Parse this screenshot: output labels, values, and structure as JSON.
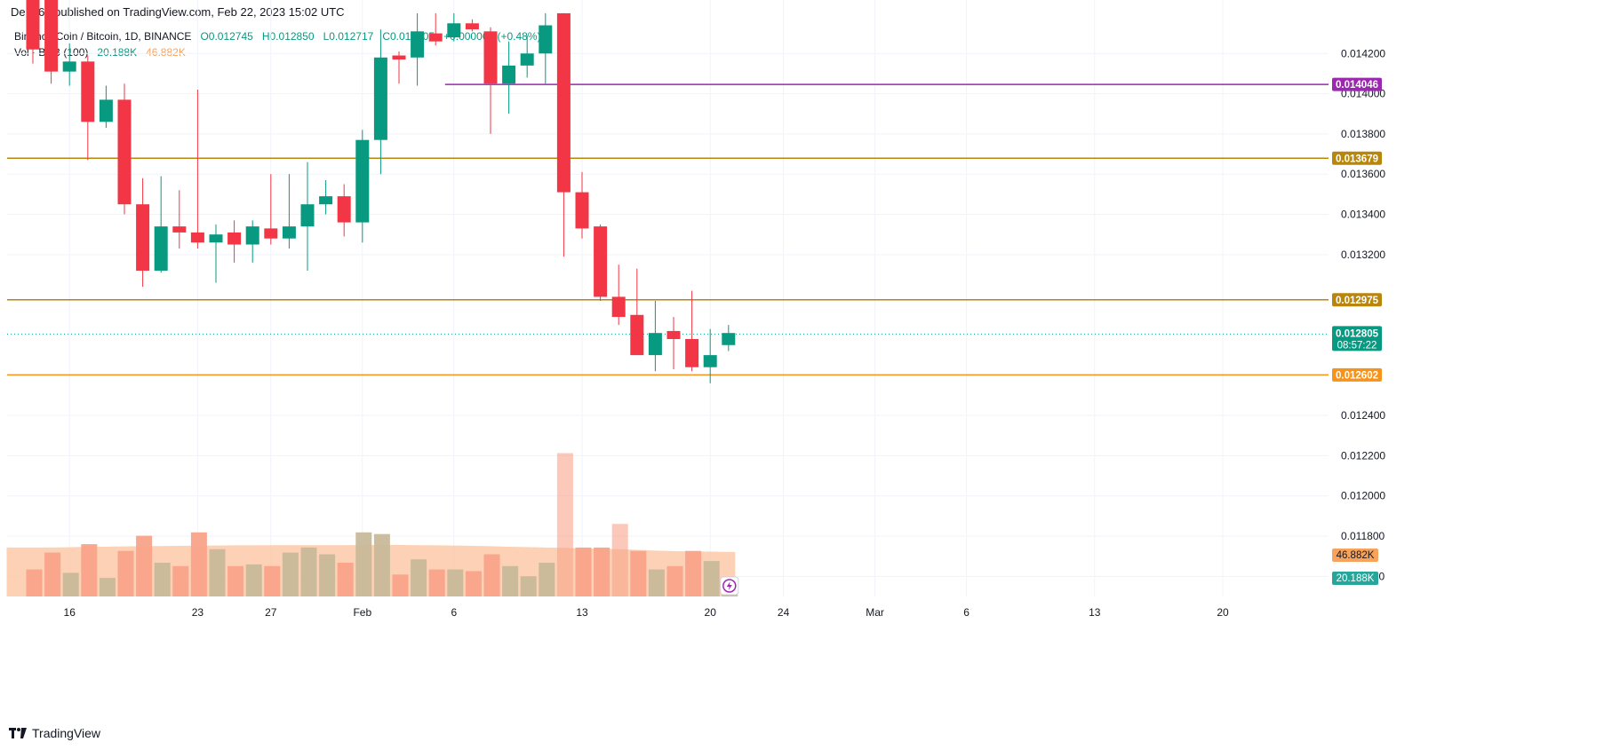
{
  "header": {
    "publisher": "Den767 published on TradingView.com, Feb 22, 2023 15:02 UTC"
  },
  "legend": {
    "symbol": "Binance Coin / Bitcoin, 1D, BINANCE",
    "open": "O0.012745",
    "high": "H0.012850",
    "low": "L0.012717",
    "close": "C0.012805",
    "change": "+0.000061 (+0.48%)",
    "vol_label": "Vol · BNB (100)",
    "vol_value": "20.188K",
    "vol_ma": "46.882K"
  },
  "footer": {
    "brand": "TradingView"
  },
  "colors": {
    "up": "#089981",
    "down": "#f23645",
    "line_purple": "#9c27b0",
    "line_gold": "#b8860b",
    "line_orange": "#f7931a",
    "vol_up": "#c8b99a",
    "vol_down": "#f9a38a",
    "vol_ma_fill": "#fcc9a8"
  },
  "chart_data": {
    "type": "candlestick",
    "price_axis": {
      "ticks": [
        "0.014200",
        "0.014000",
        "0.013800",
        "0.013600",
        "0.013400",
        "0.013200",
        "0.012400",
        "0.012200",
        "0.012000",
        "0.011800",
        "0.011600"
      ],
      "range": [
        0.0115,
        0.01436
      ]
    },
    "time_axis": {
      "ticks": [
        {
          "label": "16",
          "day": 2
        },
        {
          "label": "23",
          "day": 9
        },
        {
          "label": "27",
          "day": 13
        },
        {
          "label": "Feb",
          "day": 18
        },
        {
          "label": "6",
          "day": 23
        },
        {
          "label": "13",
          "day": 30
        },
        {
          "label": "20",
          "day": 37
        },
        {
          "label": "24",
          "day": 41
        },
        {
          "label": "Mar",
          "day": 46
        },
        {
          "label": "6",
          "day": 51
        },
        {
          "label": "13",
          "day": 58
        },
        {
          "label": "20",
          "day": 65
        }
      ],
      "first_date": "2023-01-14"
    },
    "horizontal_lines": [
      {
        "label": "0.014046",
        "value": 0.014046,
        "color": "#9c27b0",
        "from_day": 23,
        "bg": "#9c27b0"
      },
      {
        "label": "0.013679",
        "value": 0.013679,
        "color": "#b8860b",
        "from_day": 0,
        "bg": "#b8860b"
      },
      {
        "label": "0.012975",
        "value": 0.012975,
        "color": "#b8860b",
        "from_day": 0,
        "bg": "#b8860b"
      },
      {
        "label": "0.012602",
        "value": 0.012602,
        "color": "#f7931a",
        "from_day": 0,
        "bg": "#f7931a"
      }
    ],
    "last_price": {
      "label": "0.012805",
      "countdown": "08:57:22",
      "value": 0.012805
    },
    "volume_labels": {
      "ma": "46.882K",
      "vol": "20.188K"
    },
    "candles": [
      {
        "o": 0.01452,
        "h": 0.0146,
        "l": 0.01415,
        "c": 0.01422,
        "v": 160
      },
      {
        "o": 0.01455,
        "h": 0.01462,
        "l": 0.01405,
        "c": 0.01411,
        "v": 260
      },
      {
        "o": 0.01411,
        "h": 0.01425,
        "l": 0.01404,
        "c": 0.01416,
        "v": 140
      },
      {
        "o": 0.01416,
        "h": 0.01419,
        "l": 0.01367,
        "c": 0.01386,
        "v": 310
      },
      {
        "o": 0.01386,
        "h": 0.01404,
        "l": 0.01383,
        "c": 0.01397,
        "v": 110
      },
      {
        "o": 0.01397,
        "h": 0.01405,
        "l": 0.0134,
        "c": 0.01345,
        "v": 270
      },
      {
        "o": 0.01345,
        "h": 0.01358,
        "l": 0.01304,
        "c": 0.01312,
        "v": 360
      },
      {
        "o": 0.01312,
        "h": 0.01359,
        "l": 0.01311,
        "c": 0.01334,
        "v": 200
      },
      {
        "o": 0.01334,
        "h": 0.01352,
        "l": 0.01323,
        "c": 0.01331,
        "v": 180
      },
      {
        "o": 0.01331,
        "h": 0.01402,
        "l": 0.01323,
        "c": 0.01326,
        "v": 380
      },
      {
        "o": 0.01326,
        "h": 0.01335,
        "l": 0.01306,
        "c": 0.0133,
        "v": 280
      },
      {
        "o": 0.01331,
        "h": 0.01337,
        "l": 0.01316,
        "c": 0.01325,
        "v": 180
      },
      {
        "o": 0.01325,
        "h": 0.01337,
        "l": 0.01316,
        "c": 0.01334,
        "v": 190
      },
      {
        "o": 0.01333,
        "h": 0.0136,
        "l": 0.01325,
        "c": 0.01328,
        "v": 180
      },
      {
        "o": 0.01328,
        "h": 0.0136,
        "l": 0.01323,
        "c": 0.01334,
        "v": 260
      },
      {
        "o": 0.01334,
        "h": 0.01366,
        "l": 0.01312,
        "c": 0.01345,
        "v": 290
      },
      {
        "o": 0.01345,
        "h": 0.01357,
        "l": 0.0134,
        "c": 0.01349,
        "v": 250
      },
      {
        "o": 0.01349,
        "h": 0.01355,
        "l": 0.01329,
        "c": 0.01336,
        "v": 200
      },
      {
        "o": 0.01336,
        "h": 0.01382,
        "l": 0.01326,
        "c": 0.01377,
        "v": 380
      },
      {
        "o": 0.01377,
        "h": 0.01432,
        "l": 0.0136,
        "c": 0.01418,
        "v": 370
      },
      {
        "o": 0.01419,
        "h": 0.01421,
        "l": 0.01405,
        "c": 0.01417,
        "v": 130
      },
      {
        "o": 0.01418,
        "h": 0.0144,
        "l": 0.01404,
        "c": 0.01431,
        "v": 220
      },
      {
        "o": 0.0143,
        "h": 0.0144,
        "l": 0.01424,
        "c": 0.01426,
        "v": 160
      },
      {
        "o": 0.01428,
        "h": 0.0144,
        "l": 0.01426,
        "c": 0.01435,
        "v": 160
      },
      {
        "o": 0.01435,
        "h": 0.01437,
        "l": 0.01431,
        "c": 0.01432,
        "v": 150
      },
      {
        "o": 0.01431,
        "h": 0.01433,
        "l": 0.0138,
        "c": 0.01405,
        "v": 250
      },
      {
        "o": 0.01405,
        "h": 0.01426,
        "l": 0.0139,
        "c": 0.01414,
        "v": 180
      },
      {
        "o": 0.01414,
        "h": 0.01429,
        "l": 0.01408,
        "c": 0.0142,
        "v": 120
      },
      {
        "o": 0.0142,
        "h": 0.0144,
        "l": 0.01405,
        "c": 0.01434,
        "v": 200
      },
      {
        "o": 0.0144,
        "h": 0.0144,
        "l": 0.01319,
        "c": 0.01351,
        "v": 850
      },
      {
        "o": 0.01351,
        "h": 0.01361,
        "l": 0.01328,
        "c": 0.01333,
        "v": 290
      },
      {
        "o": 0.01334,
        "h": 0.01335,
        "l": 0.01297,
        "c": 0.01299,
        "v": 290
      },
      {
        "o": 0.01299,
        "h": 0.01315,
        "l": 0.01285,
        "c": 0.01289,
        "v": 430
      },
      {
        "o": 0.0129,
        "h": 0.01313,
        "l": 0.01271,
        "c": 0.0127,
        "v": 270
      },
      {
        "o": 0.0127,
        "h": 0.01297,
        "l": 0.01262,
        "c": 0.01281,
        "v": 160
      },
      {
        "o": 0.01282,
        "h": 0.01289,
        "l": 0.01263,
        "c": 0.01278,
        "v": 180
      },
      {
        "o": 0.01278,
        "h": 0.01302,
        "l": 0.01262,
        "c": 0.01264,
        "v": 270
      },
      {
        "o": 0.01264,
        "h": 0.01283,
        "l": 0.01256,
        "c": 0.0127,
        "v": 210
      },
      {
        "o": 0.01275,
        "h": 0.01285,
        "l": 0.01272,
        "c": 0.01281,
        "v": 80
      }
    ],
    "volume_ma": [
      290,
      290,
      292,
      294,
      295,
      297,
      298,
      299,
      300,
      301,
      302,
      303,
      303,
      304,
      304,
      304,
      304,
      304,
      305,
      305,
      305,
      304,
      303,
      302,
      300,
      298,
      295,
      293,
      290,
      288,
      285,
      283,
      280,
      276,
      272,
      269,
      267,
      266,
      264
    ]
  }
}
